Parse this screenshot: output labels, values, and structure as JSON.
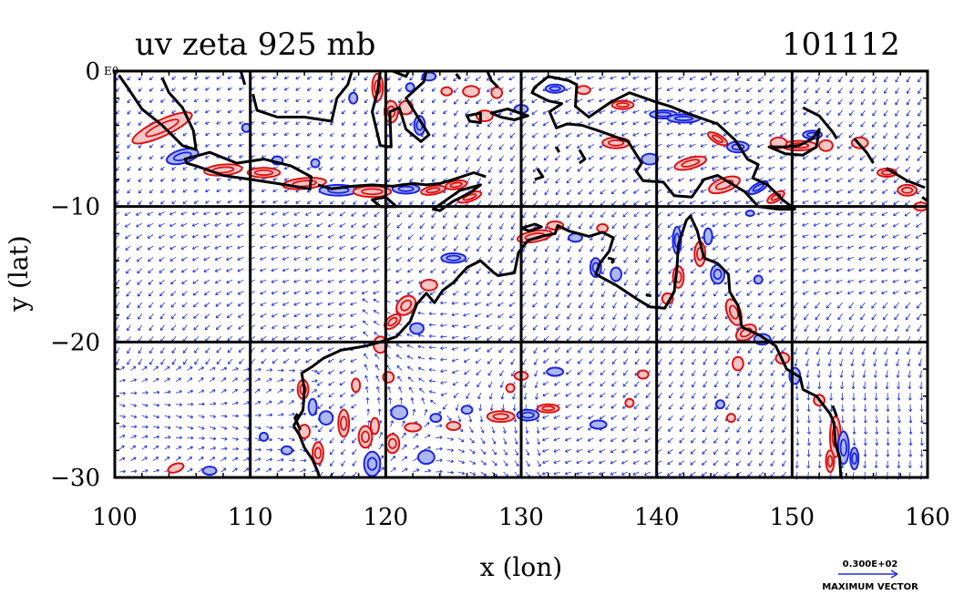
{
  "title": {
    "left": "uv zeta 925 mb",
    "right": "101112"
  },
  "axes": {
    "xlabel": "x (lon)",
    "ylabel": "y (lat)",
    "xlim": [
      100,
      160
    ],
    "ylim": [
      -30,
      0
    ],
    "xticks": [
      "100",
      "110",
      "120",
      "130",
      "140",
      "150",
      "160"
    ],
    "yticks": [
      "0",
      "−10",
      "−20",
      "−30"
    ],
    "y_top_suffix": "E0",
    "grid": true
  },
  "legend": {
    "vector_value": "0.300E+02",
    "vector_label": "MAXIMUM VECTOR"
  },
  "colors": {
    "coast": "#000000",
    "vectors": "#1f2fe0",
    "positive_contour": "#e01010",
    "negative_contour": "#1a24e8",
    "shade_pos": "#f4c6c6",
    "shade_neg": "#aeb8ee"
  }
}
